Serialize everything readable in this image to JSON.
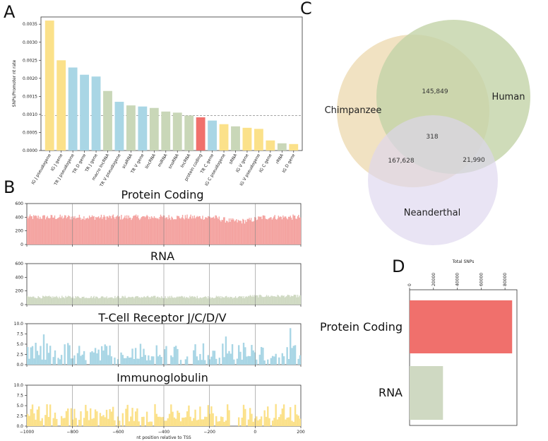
{
  "panels": {
    "A": "A",
    "B": "B",
    "C": "C",
    "D": "D"
  },
  "chart_data": [
    {
      "id": "A",
      "type": "bar",
      "ylabel": "SNPs/Promoter nt rate",
      "ylim": [
        0,
        0.0037
      ],
      "yticks": [
        "0.0000",
        "0.0005",
        "0.0010",
        "0.0015",
        "0.0020",
        "0.0025",
        "0.0030",
        "0.0035"
      ],
      "reference_line": 0.00097,
      "categories": [
        "IG J pseudogene",
        "IG J gene",
        "TR J pseudogene",
        "TR D gene",
        "TR J gene",
        "macro lncRNA",
        "TR V pseudogene",
        "scaRNA",
        "TR V gene",
        "lincRNA",
        "miRNA",
        "snoRNA",
        "lncRNA",
        "protein coding",
        "TR C gene",
        "IG C pseudogene",
        "sRNA",
        "IG V gene",
        "IG V pseudogene",
        "IG C gene",
        "rRNA",
        "IG D gene"
      ],
      "values": [
        0.0036,
        0.0025,
        0.0023,
        0.0021,
        0.00205,
        0.00165,
        0.00135,
        0.00125,
        0.00122,
        0.00118,
        0.00108,
        0.00105,
        0.00097,
        0.00092,
        0.00083,
        0.00073,
        0.00067,
        0.00063,
        0.0006,
        0.00028,
        0.0002,
        0.00018
      ],
      "colors": [
        "#fbe18a",
        "#fbe18a",
        "#a9d6e5",
        "#a9d6e5",
        "#a9d6e5",
        "#c9d7b8",
        "#a9d6e5",
        "#c9d7b8",
        "#a9d6e5",
        "#c9d7b8",
        "#c9d7b8",
        "#c9d7b8",
        "#c9d7b8",
        "#f0706c",
        "#a9d6e5",
        "#fbe18a",
        "#c9d7b8",
        "#fbe18a",
        "#fbe18a",
        "#fbe18a",
        "#c9d7b8",
        "#fbe18a"
      ]
    },
    {
      "id": "B",
      "type": "bar",
      "xlabel": "nt position relative to TSS",
      "xlim": [
        -1000,
        200
      ],
      "xticks": [
        "−1000",
        "−800",
        "−600",
        "−400",
        "−200",
        "0",
        "200"
      ],
      "series": [
        {
          "name": "Protein Coding",
          "color": "#f4a3a0",
          "yticks": [
            "0",
            "200",
            "400",
            "600"
          ],
          "ylim": [
            0,
            600
          ]
        },
        {
          "name": "RNA",
          "color": "#cfd9c2",
          "yticks": [
            "0",
            "200",
            "400",
            "600"
          ],
          "ylim": [
            0,
            600
          ]
        },
        {
          "name": "T-Cell Receptor J/C/D/V",
          "color": "#a9d6e5",
          "yticks": [
            "0.0",
            "2.5",
            "5.0",
            "7.5",
            "10.0"
          ],
          "ylim": [
            0,
            10
          ]
        },
        {
          "name": "Immunoglobulin",
          "color": "#fbe18a",
          "yticks": [
            "0.0",
            "2.5",
            "5.0",
            "7.5",
            "10.0"
          ],
          "ylim": [
            0,
            10
          ]
        }
      ]
    },
    {
      "id": "C",
      "type": "venn",
      "sets": [
        "Chimpanzee",
        "Human",
        "Neanderthal"
      ],
      "colors": [
        "#ecd8ad",
        "#c3d3a7",
        "#ddd5ee"
      ],
      "regions": {
        "Chimpanzee&Human": "145,849",
        "Chimpanzee&Human&Neanderthal": "318",
        "Chimpanzee&Neanderthal": "167,628",
        "Human&Neanderthal": "21,990"
      },
      "highlight_color": "#b3262d"
    },
    {
      "id": "D",
      "type": "bar",
      "orientation": "horizontal",
      "xlabel": "Total SNPs",
      "xticks": [
        "0",
        "20000",
        "40000",
        "60000",
        "80000"
      ],
      "xlim": [
        0,
        90000
      ],
      "categories": [
        "Protein Coding",
        "RNA"
      ],
      "values": [
        86000,
        28000
      ],
      "colors": [
        "#f0706c",
        "#cfd9c2"
      ]
    }
  ]
}
